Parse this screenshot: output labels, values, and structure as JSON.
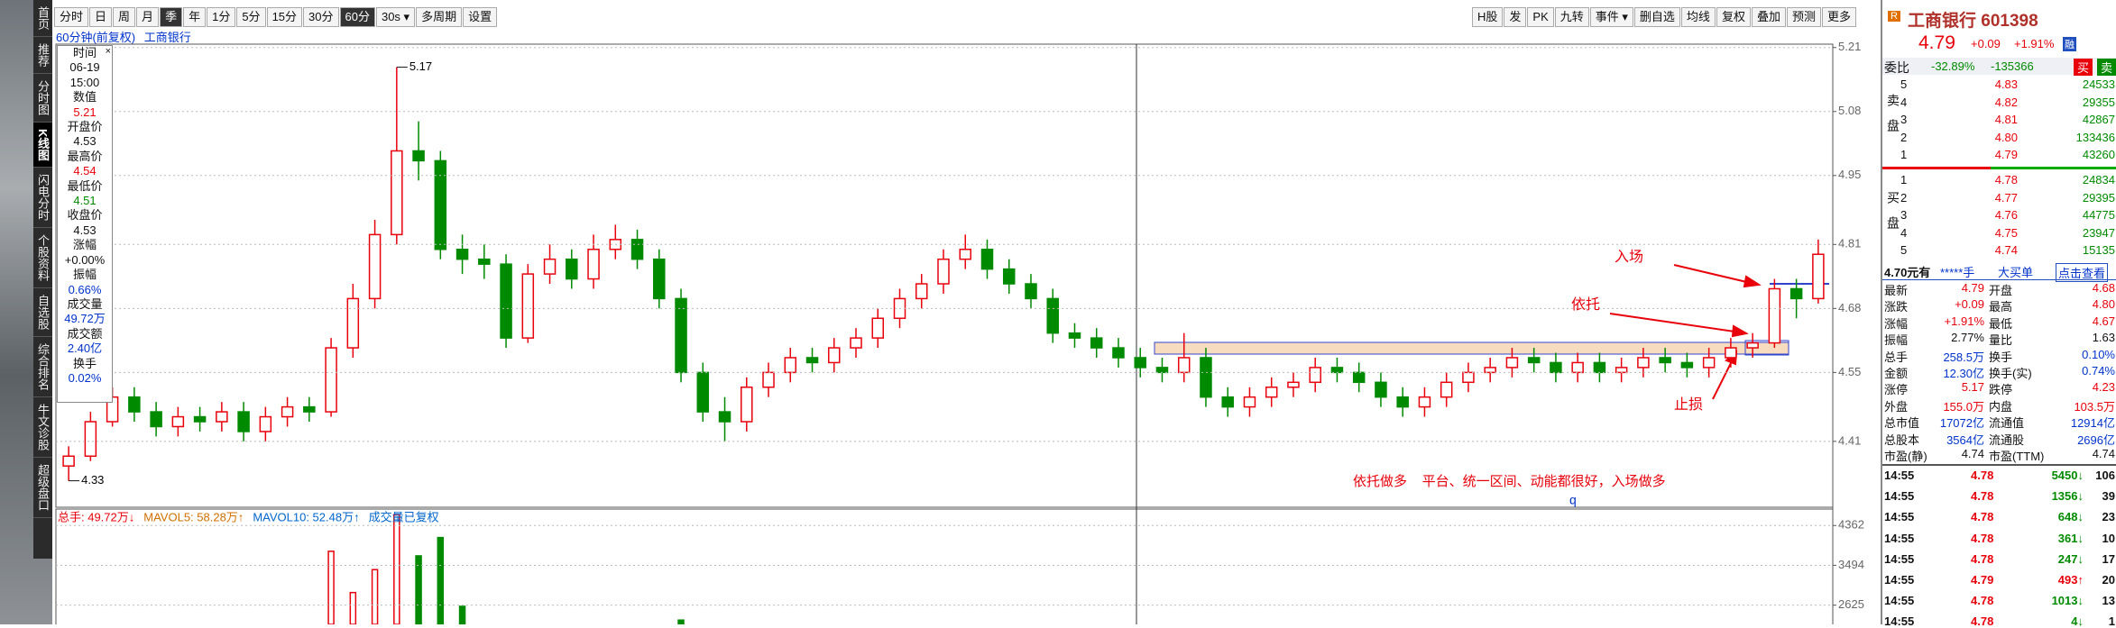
{
  "sidebar": {
    "tabs": [
      "首页",
      "推荐",
      "分时图",
      "K线图",
      "闪电分时",
      "个股资料",
      "自选股",
      "综合排名",
      "牛文诊股",
      "超级盘口"
    ]
  },
  "toolbar": {
    "periods": [
      "分时",
      "日",
      "周",
      "月",
      "季",
      "年",
      "1分",
      "5分",
      "15分",
      "30分",
      "60分",
      "30s ▾",
      "多周期",
      "设置"
    ],
    "tools": [
      "H股",
      "发",
      "PK",
      "九转",
      "事件 ▾",
      "删自选",
      "均线",
      "复权",
      "叠加",
      "预测",
      "更多"
    ]
  },
  "chart_header": {
    "period": "60分钟(前复权)",
    "name": "工商银行"
  },
  "info_box": {
    "items": [
      [
        "时间",
        "06-19",
        "15:00"
      ],
      [
        "数值",
        "5.21"
      ],
      [
        "开盘价",
        "4.53"
      ],
      [
        "最高价",
        "4.54"
      ],
      [
        "最低价",
        "4.51"
      ],
      [
        "收盘价",
        "4.53"
      ],
      [
        "涨幅",
        "+0.00%"
      ],
      [
        "振幅",
        "0.66%"
      ],
      [
        "成交量",
        "49.72万"
      ],
      [
        "成交额",
        "2.40亿"
      ],
      [
        "换手",
        "0.02%"
      ]
    ]
  },
  "chart_data": [
    {
      "type": "candlestick",
      "open": [
        4.36,
        4.38,
        4.45,
        4.5,
        4.47,
        4.44,
        4.46,
        4.45,
        4.47,
        4.43,
        4.46,
        4.48,
        4.47,
        4.6,
        4.7,
        4.83,
        5.0,
        4.98,
        4.8,
        4.78,
        4.77,
        4.62,
        4.75,
        4.78,
        4.74,
        4.8,
        4.82,
        4.78,
        4.7,
        4.55,
        4.47,
        4.45,
        4.52,
        4.55,
        4.58,
        4.57,
        4.6,
        4.62,
        4.66,
        4.7,
        4.73,
        4.78,
        4.8,
        4.76,
        4.73,
        4.7,
        4.63,
        4.62,
        4.6,
        4.58,
        4.56,
        4.55,
        4.58,
        4.5,
        4.48,
        4.5,
        4.52,
        4.53,
        4.56,
        4.55,
        4.53,
        4.5,
        4.48,
        4.5,
        4.53,
        4.55,
        4.56,
        4.58,
        4.57,
        4.55,
        4.57,
        4.55,
        4.56,
        4.58,
        4.57,
        4.56,
        4.58,
        4.6,
        4.61,
        4.72,
        4.7
      ],
      "high": [
        4.4,
        4.47,
        4.52,
        4.52,
        4.49,
        4.48,
        4.48,
        4.49,
        4.49,
        4.48,
        4.5,
        4.5,
        4.62,
        4.73,
        4.86,
        5.17,
        5.06,
        5.0,
        4.83,
        4.81,
        4.79,
        4.77,
        4.81,
        4.8,
        4.83,
        4.85,
        4.84,
        4.8,
        4.72,
        4.57,
        4.5,
        4.54,
        4.57,
        4.6,
        4.6,
        4.62,
        4.64,
        4.68,
        4.72,
        4.75,
        4.8,
        4.83,
        4.82,
        4.78,
        4.75,
        4.72,
        4.65,
        4.64,
        4.62,
        4.6,
        4.58,
        4.63,
        4.6,
        4.52,
        4.52,
        4.54,
        4.55,
        4.58,
        4.58,
        4.57,
        4.55,
        4.52,
        4.52,
        4.55,
        4.57,
        4.58,
        4.6,
        4.6,
        4.59,
        4.59,
        4.59,
        4.58,
        4.6,
        4.6,
        4.59,
        4.6,
        4.62,
        4.63,
        4.74,
        4.74,
        4.82
      ],
      "low": [
        4.33,
        4.37,
        4.44,
        4.45,
        4.42,
        4.42,
        4.43,
        4.43,
        4.41,
        4.41,
        4.44,
        4.45,
        4.46,
        4.58,
        4.68,
        4.81,
        4.94,
        4.78,
        4.75,
        4.74,
        4.6,
        4.61,
        4.73,
        4.72,
        4.72,
        4.78,
        4.76,
        4.68,
        4.53,
        4.45,
        4.41,
        4.43,
        4.5,
        4.53,
        4.55,
        4.55,
        4.58,
        4.6,
        4.64,
        4.68,
        4.71,
        4.76,
        4.74,
        4.71,
        4.68,
        4.61,
        4.6,
        4.58,
        4.56,
        4.54,
        4.53,
        4.53,
        4.48,
        4.46,
        4.46,
        4.48,
        4.5,
        4.51,
        4.53,
        4.51,
        4.48,
        4.46,
        4.46,
        4.48,
        4.51,
        4.53,
        4.54,
        4.55,
        4.53,
        4.53,
        4.53,
        4.53,
        4.54,
        4.55,
        4.54,
        4.54,
        4.56,
        4.58,
        4.6,
        4.66,
        4.69
      ],
      "close": [
        4.38,
        4.45,
        4.5,
        4.47,
        4.44,
        4.46,
        4.45,
        4.47,
        4.43,
        4.46,
        4.48,
        4.47,
        4.6,
        4.7,
        4.83,
        5.0,
        4.98,
        4.8,
        4.78,
        4.77,
        4.62,
        4.75,
        4.78,
        4.74,
        4.8,
        4.82,
        4.78,
        4.7,
        4.55,
        4.47,
        4.45,
        4.52,
        4.55,
        4.58,
        4.57,
        4.6,
        4.62,
        4.66,
        4.7,
        4.73,
        4.78,
        4.8,
        4.76,
        4.73,
        4.7,
        4.63,
        4.62,
        4.6,
        4.58,
        4.56,
        4.55,
        4.58,
        4.5,
        4.48,
        4.5,
        4.52,
        4.53,
        4.56,
        4.55,
        4.53,
        4.5,
        4.48,
        4.5,
        4.53,
        4.55,
        4.56,
        4.58,
        4.57,
        4.55,
        4.57,
        4.55,
        4.56,
        4.58,
        4.57,
        4.56,
        4.58,
        4.6,
        4.61,
        4.72,
        4.7,
        4.79
      ],
      "up_color": "#e8000b",
      "down_color": "#008a00",
      "ylim": [
        4.278,
        5.215
      ],
      "yticks": [
        5.21,
        5.08,
        4.95,
        4.81,
        4.68,
        4.55,
        4.41
      ],
      "grid": true,
      "annotations": [
        "入场",
        "依托",
        "止损",
        "依托做多    平台、统一区间、动能都很好，入场做多",
        "q"
      ]
    },
    {
      "type": "bar",
      "legend": [
        "总手: 49.72万↓",
        "MAVOL5: 58.28万↑",
        "MAVOL10: 52.48万↑",
        "成交量已复权"
      ],
      "values": [
        1500,
        1500,
        1500,
        1500,
        1500,
        1500,
        1500,
        1500,
        1500,
        1500,
        1500,
        1500,
        3800,
        2900,
        3400,
        4600,
        3700,
        4100,
        2600,
        1500,
        1500,
        1500,
        1500,
        1500,
        1500,
        1500,
        1500,
        1500,
        2300,
        1500,
        1500,
        1500,
        1500,
        1500,
        1500,
        1500,
        1500,
        1500,
        1500,
        1500,
        1500,
        1500,
        1500,
        1500,
        1500,
        1500,
        1500,
        1500,
        1500,
        1500,
        1500,
        1500,
        1500,
        1500,
        1500,
        1500,
        1500,
        1500,
        1500,
        1500,
        1500,
        1500,
        1500,
        1500,
        1500,
        1500,
        1500,
        1500,
        1500,
        1500,
        1500,
        1500,
        1500,
        1500,
        1500,
        1500,
        1500,
        1500,
        1500,
        1500,
        1500
      ],
      "ylim": [
        2206,
        4701
      ],
      "yticks": [
        4362,
        3494,
        2625
      ],
      "grid": true
    }
  ],
  "quote": {
    "badge": "R",
    "name": "工商银行 601398",
    "price": "4.79",
    "change": "+0.09",
    "pct": "+1.91%",
    "tag": "融",
    "ratio_label": "委比",
    "ratio": "-32.89%",
    "ratio_diff": "-135366",
    "buy_btn": "买",
    "sell_btn": "卖",
    "sell_label": "卖盘",
    "buy_label": "买盘",
    "asks": [
      [
        "5",
        "4.83",
        "24533"
      ],
      [
        "4",
        "4.82",
        "29355"
      ],
      [
        "3",
        "4.81",
        "42867"
      ],
      [
        "2",
        "4.80",
        "133436"
      ],
      [
        "1",
        "4.79",
        "43260"
      ]
    ],
    "bids": [
      [
        "1",
        "4.78",
        "24834"
      ],
      [
        "2",
        "4.77",
        "29395"
      ],
      [
        "3",
        "4.76",
        "44775"
      ],
      [
        "4",
        "4.75",
        "23947"
      ],
      [
        "5",
        "4.74",
        "15135"
      ]
    ],
    "big_order": [
      "4.70元有",
      "*****手",
      "大买单",
      "点击查看"
    ],
    "stats": [
      [
        "最新",
        "4.79",
        "开盘",
        "4.68"
      ],
      [
        "涨跌",
        "+0.09",
        "最高",
        "4.80"
      ],
      [
        "涨幅",
        "+1.91%",
        "最低",
        "4.67"
      ],
      [
        "振幅",
        "2.77%",
        "量比",
        "1.63"
      ],
      [
        "总手",
        "258.5万",
        "换手",
        "0.10%"
      ],
      [
        "金额",
        "12.30亿",
        "换手(实)",
        "0.74%"
      ],
      [
        "涨停",
        "5.17",
        "跌停",
        "4.23"
      ],
      [
        "外盘",
        "155.0万",
        "内盘",
        "103.5万"
      ],
      [
        "总市值",
        "17072亿",
        "流通值",
        "12914亿"
      ],
      [
        "总股本",
        "3564亿",
        "流通股",
        "2696亿"
      ],
      [
        "市盈(静)",
        "4.74",
        "市盈(TTM)",
        "4.74"
      ]
    ],
    "trades": [
      [
        "14:55",
        "4.78",
        "5450↓",
        "106"
      ],
      [
        "14:55",
        "4.78",
        "1356↓",
        "39"
      ],
      [
        "14:55",
        "4.78",
        "648↓",
        "23"
      ],
      [
        "14:55",
        "4.78",
        "361↓",
        "10"
      ],
      [
        "14:55",
        "4.78",
        "247↓",
        "17"
      ],
      [
        "14:55",
        "4.79",
        "493↑",
        "20"
      ],
      [
        "14:55",
        "4.78",
        "1013↓",
        "13"
      ],
      [
        "14:55",
        "4.78",
        "4↓",
        "1"
      ]
    ]
  }
}
